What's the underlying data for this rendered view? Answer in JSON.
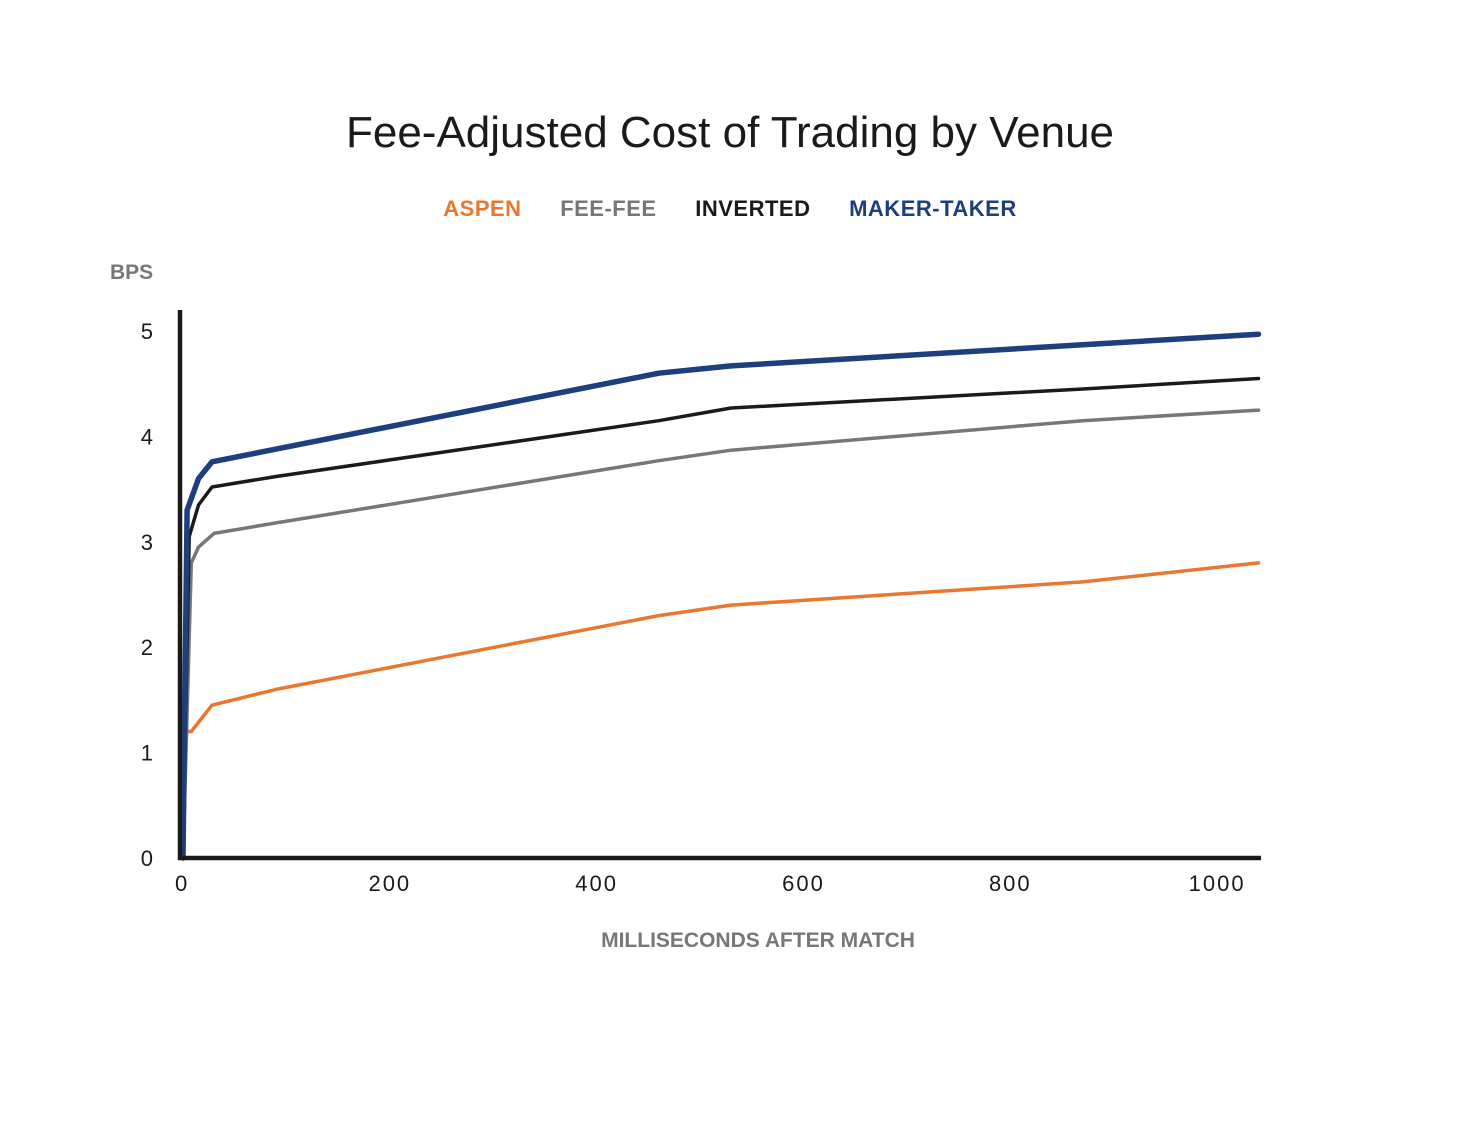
{
  "chart_data": {
    "type": "line",
    "title": "Fee-Adjusted Cost of Trading by Venue",
    "xlabel": "MILLISECONDS AFTER MATCH",
    "ylabel": "BPS",
    "xlim": [
      0,
      1040
    ],
    "ylim": [
      0,
      5.2
    ],
    "x_ticks": [
      0,
      200,
      400,
      600,
      800,
      1000
    ],
    "y_ticks": [
      0,
      1,
      2,
      3,
      4,
      5
    ],
    "grid": false,
    "legend_position": "top-center",
    "series": [
      {
        "name": "ASPEN",
        "color": "#e8782f",
        "x": [
          0,
          8,
          28,
          90,
          460,
          530,
          870,
          1040
        ],
        "y": [
          1.2,
          1.2,
          1.45,
          1.6,
          2.3,
          2.4,
          2.62,
          2.8
        ]
      },
      {
        "name": "FEE-FEE",
        "color": "#777777",
        "x": [
          0,
          8,
          15,
          30,
          90,
          460,
          530,
          870,
          1040
        ],
        "y": [
          0,
          2.8,
          2.95,
          3.08,
          3.18,
          3.77,
          3.87,
          4.15,
          4.25
        ]
      },
      {
        "name": "INVERTED",
        "color": "#1a1a1a",
        "x": [
          0,
          6,
          15,
          28,
          90,
          460,
          530,
          870,
          1040
        ],
        "y": [
          0,
          3.05,
          3.35,
          3.52,
          3.62,
          4.15,
          4.27,
          4.45,
          4.55
        ]
      },
      {
        "name": "MAKER-TAKER",
        "color": "#1d3f7e",
        "x": [
          0,
          4,
          15,
          28,
          90,
          460,
          530,
          870,
          1040
        ],
        "y": [
          0,
          3.3,
          3.6,
          3.76,
          3.88,
          4.6,
          4.67,
          4.87,
          4.97
        ]
      }
    ]
  },
  "axis_color": "#1a1a1a",
  "label_color": "#777777"
}
